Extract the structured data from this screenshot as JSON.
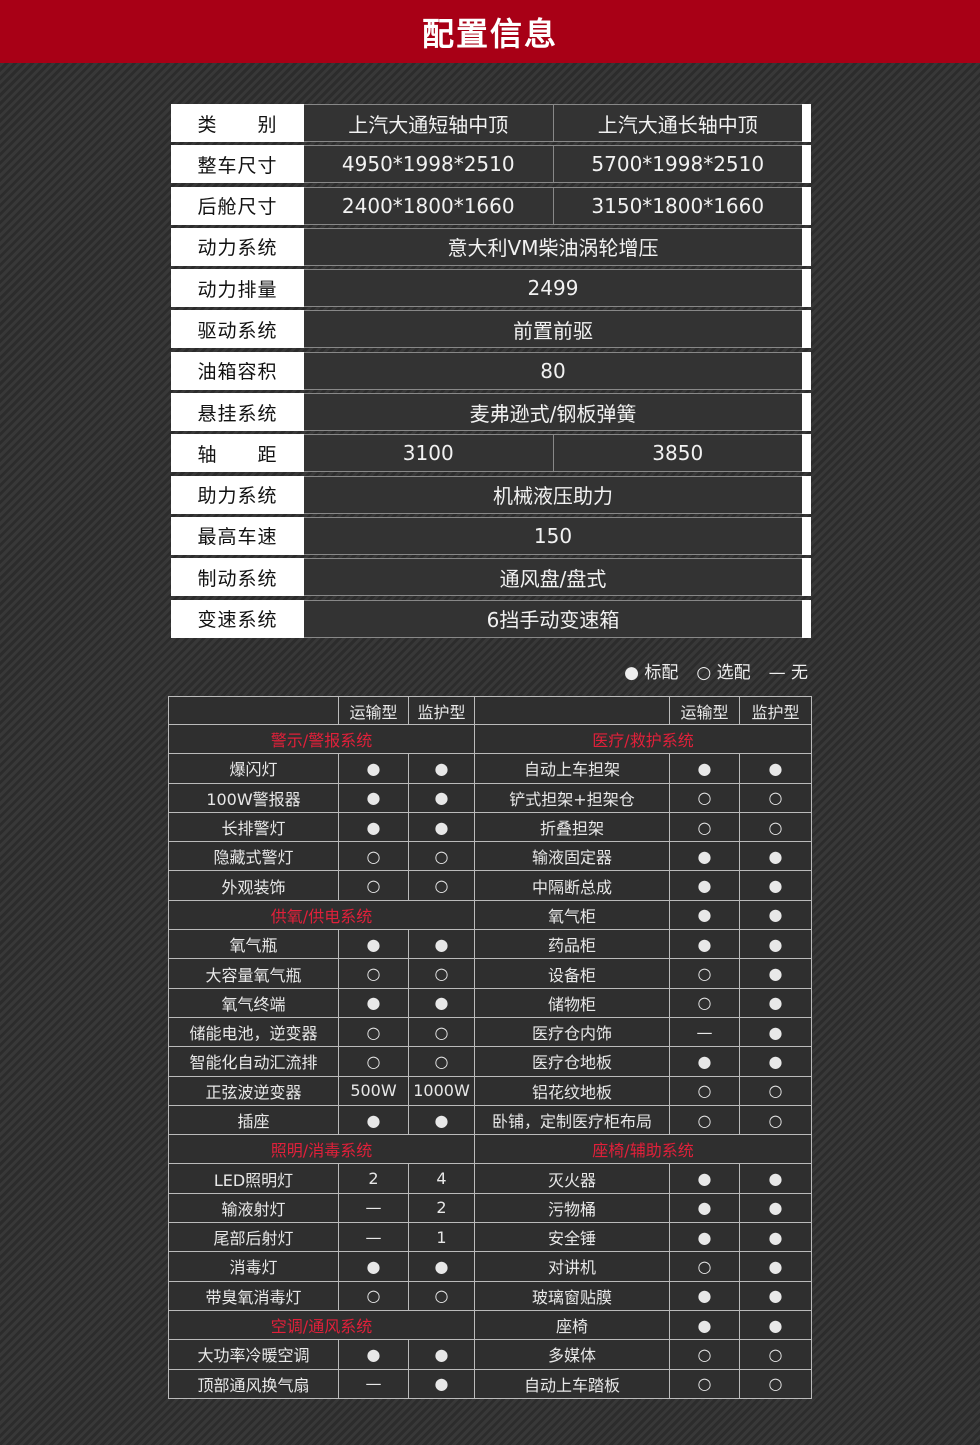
{
  "title": "配置信息",
  "spec_rows": [
    {
      "label": "类　　别",
      "values": [
        "上汽大通短轴中顶",
        "上汽大通长轴中顶"
      ]
    },
    {
      "label": "整车尺寸",
      "values": [
        "4950*1998*2510",
        "5700*1998*2510"
      ]
    },
    {
      "label": "后舱尺寸",
      "values": [
        "2400*1800*1660",
        "3150*1800*1660"
      ]
    },
    {
      "label": "动力系统",
      "values": [
        "意大利VM柴油涡轮增压"
      ]
    },
    {
      "label": "动力排量",
      "values": [
        "2499"
      ]
    },
    {
      "label": "驱动系统",
      "values": [
        "前置前驱"
      ]
    },
    {
      "label": "油箱容积",
      "values": [
        "80"
      ]
    },
    {
      "label": "悬挂系统",
      "values": [
        "麦弗逊式/钢板弹簧"
      ]
    },
    {
      "label": "轴　　距",
      "values": [
        "3100",
        "3850"
      ]
    },
    {
      "label": "助力系统",
      "values": [
        "机械液压助力"
      ]
    },
    {
      "label": "最高车速",
      "values": [
        "150"
      ]
    },
    {
      "label": "制动系统",
      "values": [
        "通风盘/盘式"
      ]
    },
    {
      "label": "变速系统",
      "values": [
        "6挡手动变速箱"
      ]
    }
  ],
  "legend": {
    "standard": "● 标配",
    "optional": "○ 选配",
    "none": "— 无"
  },
  "feature_header": [
    "",
    "运输型",
    "监护型",
    "",
    "运输型",
    "监护型"
  ],
  "category_color": "#e0203a",
  "left": [
    {
      "category": "警示/警报系统"
    },
    [
      "爆闪灯",
      "●",
      "●"
    ],
    [
      "100W警报器",
      "●",
      "●"
    ],
    [
      "长排警灯",
      "●",
      "●"
    ],
    [
      "隐藏式警灯",
      "○",
      "○"
    ],
    [
      "外观装饰",
      "○",
      "○"
    ],
    {
      "category": "供氧/供电系统"
    },
    [
      "氧气瓶",
      "●",
      "●"
    ],
    [
      "大容量氧气瓶",
      "○",
      "○"
    ],
    [
      "氧气终端",
      "●",
      "●"
    ],
    [
      "储能电池，逆变器",
      "○",
      "○"
    ],
    [
      "智能化自动汇流排",
      "○",
      "○"
    ],
    [
      "正弦波逆变器",
      "500W",
      "1000W"
    ],
    [
      "插座",
      "●",
      "●"
    ],
    {
      "category": "照明/消毒系统"
    },
    [
      "LED照明灯",
      "2",
      "4"
    ],
    [
      "输液射灯",
      "—",
      "2"
    ],
    [
      "尾部后射灯",
      "—",
      "1"
    ],
    [
      "消毒灯",
      "●",
      "●"
    ],
    [
      "带臭氧消毒灯",
      "○",
      "○"
    ],
    {
      "category": "空调/通风系统"
    },
    [
      "大功率冷暖空调",
      "●",
      "●"
    ],
    [
      "顶部通风换气扇",
      "—",
      "●"
    ]
  ],
  "right": [
    {
      "category": "医疗/救护系统"
    },
    [
      "自动上车担架",
      "●",
      "●"
    ],
    [
      "铲式担架+担架仓",
      "○",
      "○"
    ],
    [
      "折叠担架",
      "○",
      "○"
    ],
    [
      "输液固定器",
      "●",
      "●"
    ],
    [
      "中隔断总成",
      "●",
      "●"
    ],
    [
      "氧气柜",
      "●",
      "●"
    ],
    [
      "药品柜",
      "●",
      "●"
    ],
    [
      "设备柜",
      "○",
      "●"
    ],
    [
      "储物柜",
      "○",
      "●"
    ],
    [
      "医疗仓内饰",
      "—",
      "●"
    ],
    [
      "医疗仓地板",
      "●",
      "●"
    ],
    [
      "铝花纹地板",
      "○",
      "○"
    ],
    [
      "卧铺，定制医疗柜布局",
      "○",
      "○"
    ],
    {
      "category": "座椅/辅助系统"
    },
    [
      "灭火器",
      "●",
      "●"
    ],
    [
      "污物桶",
      "●",
      "●"
    ],
    [
      "安全锤",
      "●",
      "●"
    ],
    [
      "对讲机",
      "○",
      "●"
    ],
    [
      "玻璃窗贴膜",
      "●",
      "●"
    ],
    [
      "座椅",
      "●",
      "●"
    ],
    [
      "多媒体",
      "○",
      "○"
    ],
    [
      "自动上车踏板",
      "○",
      "○"
    ]
  ]
}
